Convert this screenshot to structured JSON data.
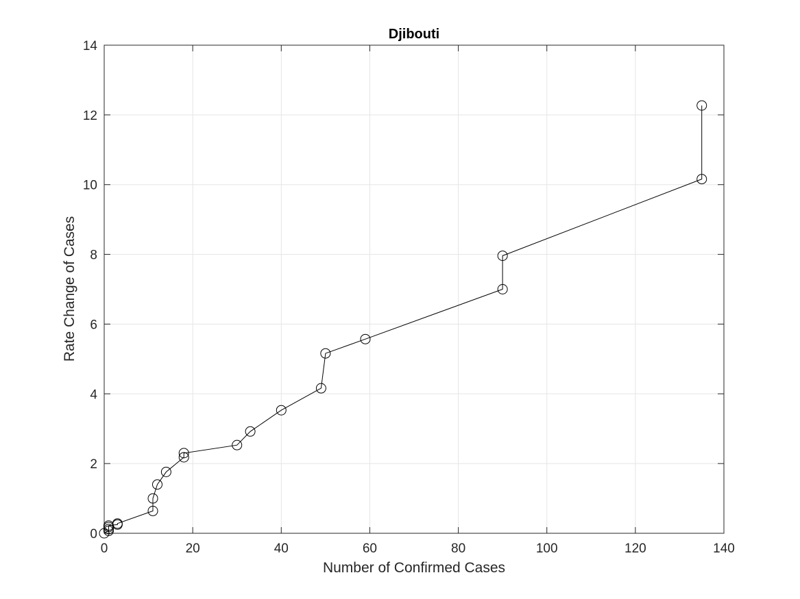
{
  "chart_data": {
    "type": "line",
    "title": "Djibouti",
    "xlabel": "Number of Confirmed Cases",
    "ylabel": "Rate Change of Cases",
    "xlim": [
      0,
      140
    ],
    "ylim": [
      0,
      14
    ],
    "xticks": [
      0,
      20,
      40,
      60,
      80,
      100,
      120,
      140
    ],
    "yticks": [
      0,
      2,
      4,
      6,
      8,
      10,
      12,
      14
    ],
    "grid": true,
    "marker": "circle-open",
    "colors": {
      "line": "#000000",
      "grid": "#e5e5e5",
      "axis": "#262626"
    },
    "series": [
      {
        "x": [
          0,
          1,
          1,
          1,
          1,
          3,
          3,
          11,
          11,
          12,
          14,
          18,
          18,
          30,
          33,
          40,
          49,
          50,
          59,
          90,
          90,
          135,
          135
        ],
        "y": [
          0,
          0.07,
          0.12,
          0.18,
          0.22,
          0.25,
          0.28,
          0.64,
          1.0,
          1.4,
          1.76,
          2.18,
          2.3,
          2.53,
          2.92,
          3.53,
          4.16,
          5.16,
          5.57,
          7.0,
          7.96,
          10.16,
          12.27
        ]
      }
    ]
  }
}
